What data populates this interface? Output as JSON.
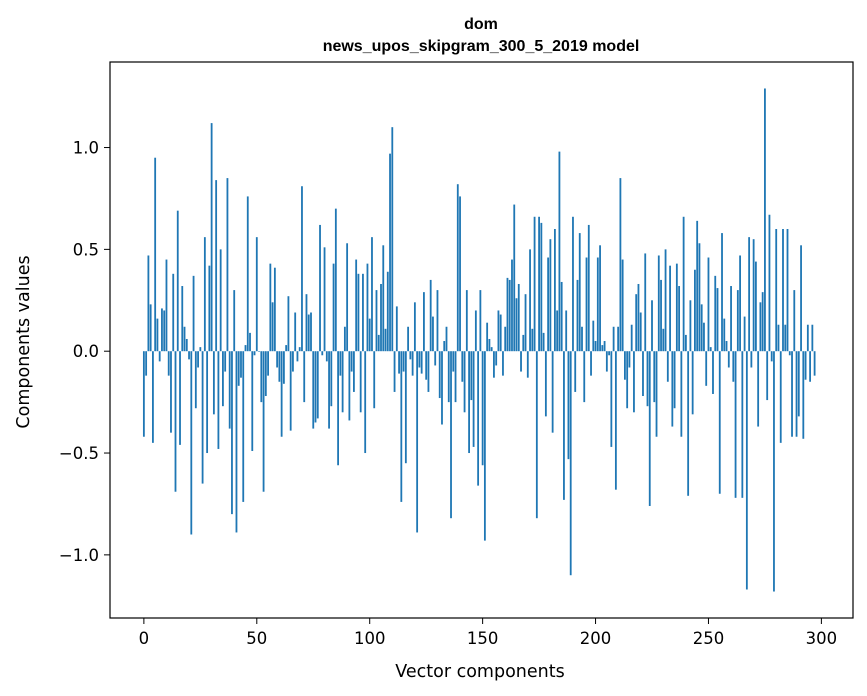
{
  "chart_data": {
    "type": "bar",
    "title": "dom",
    "subtitle": "news_upos_skipgram_300_5_2019 model",
    "xlabel": "Vector components",
    "ylabel": "Components values",
    "xlim": [
      -15,
      314
    ],
    "ylim": [
      -1.31,
      1.42
    ],
    "xticks": [
      0,
      50,
      100,
      150,
      200,
      250,
      300
    ],
    "yticks": [
      -1.0,
      -0.5,
      0.0,
      0.5,
      1.0
    ],
    "ytick_labels": [
      "−1.0",
      "−0.5",
      "0.0",
      "0.5",
      "1.0"
    ],
    "bar_color": "#1f77b4",
    "grid": false,
    "x_start": 0,
    "values": [
      -0.42,
      -0.12,
      0.47,
      0.23,
      -0.45,
      0.95,
      0.16,
      -0.05,
      0.21,
      0.2,
      0.45,
      -0.12,
      -0.4,
      0.38,
      -0.69,
      0.69,
      -0.46,
      0.32,
      0.12,
      0.06,
      -0.04,
      -0.9,
      0.37,
      -0.28,
      -0.08,
      0.02,
      -0.65,
      0.56,
      -0.5,
      0.42,
      1.12,
      -0.31,
      0.84,
      -0.48,
      0.5,
      -0.27,
      -0.1,
      0.85,
      -0.38,
      -0.8,
      0.3,
      -0.89,
      -0.17,
      -0.13,
      -0.74,
      0.03,
      0.76,
      0.09,
      -0.49,
      -0.02,
      0.56,
      0.0,
      -0.25,
      -0.69,
      -0.22,
      -0.12,
      0.43,
      0.24,
      0.41,
      -0.08,
      -0.15,
      -0.42,
      -0.16,
      0.03,
      0.27,
      -0.39,
      -0.1,
      0.19,
      -0.05,
      0.02,
      0.81,
      -0.25,
      0.28,
      0.18,
      0.19,
      -0.38,
      -0.35,
      -0.33,
      0.62,
      -0.02,
      0.51,
      -0.05,
      -0.38,
      -0.27,
      0.43,
      0.7,
      -0.56,
      -0.12,
      -0.3,
      0.12,
      0.53,
      -0.34,
      -0.1,
      -0.2,
      0.45,
      0.38,
      -0.3,
      0.38,
      -0.5,
      0.43,
      0.16,
      0.56,
      -0.28,
      0.3,
      0.08,
      0.33,
      0.52,
      0.11,
      0.39,
      0.97,
      1.1,
      -0.2,
      0.22,
      -0.11,
      -0.74,
      -0.1,
      -0.55,
      0.12,
      -0.04,
      -0.12,
      0.24,
      -0.89,
      -0.08,
      -0.11,
      0.29,
      -0.14,
      -0.2,
      0.35,
      0.17,
      -0.07,
      0.3,
      -0.23,
      -0.36,
      0.05,
      0.12,
      -0.25,
      -0.82,
      -0.1,
      -0.25,
      0.82,
      0.76,
      -0.15,
      -0.3,
      0.3,
      -0.5,
      -0.24,
      -0.47,
      0.2,
      -0.66,
      0.3,
      -0.56,
      -0.93,
      0.14,
      0.06,
      0.02,
      -0.13,
      -0.07,
      0.2,
      0.18,
      -0.12,
      0.12,
      0.36,
      0.35,
      0.45,
      0.72,
      0.26,
      0.33,
      -0.1,
      0.08,
      0.28,
      -0.13,
      0.5,
      0.11,
      0.66,
      -0.82,
      0.66,
      0.63,
      0.09,
      -0.32,
      0.46,
      0.55,
      -0.4,
      0.6,
      0.2,
      0.98,
      0.34,
      -0.73,
      0.2,
      -0.53,
      -1.1,
      0.66,
      -0.2,
      0.35,
      0.58,
      0.12,
      -0.25,
      0.46,
      0.62,
      -0.12,
      0.15,
      0.05,
      0.46,
      0.52,
      0.03,
      0.05,
      -0.1,
      -0.02,
      -0.47,
      0.12,
      -0.68,
      0.12,
      0.85,
      0.45,
      -0.14,
      -0.28,
      -0.08,
      0.13,
      -0.3,
      0.28,
      0.33,
      0.19,
      -0.22,
      0.48,
      -0.27,
      -0.76,
      0.25,
      -0.25,
      -0.42,
      0.47,
      0.35,
      0.11,
      0.5,
      -0.15,
      0.42,
      -0.37,
      -0.28,
      0.43,
      0.32,
      -0.42,
      0.66,
      0.08,
      -0.71,
      0.25,
      -0.31,
      0.4,
      0.64,
      0.53,
      0.23,
      0.14,
      -0.17,
      0.46,
      0.02,
      -0.21,
      0.37,
      0.31,
      -0.7,
      0.58,
      0.16,
      0.05,
      -0.08,
      0.32,
      -0.15,
      -0.72,
      0.3,
      0.47,
      -0.72,
      0.17,
      -1.17,
      0.56,
      -0.08,
      0.55,
      0.44,
      -0.37,
      0.24,
      0.29,
      1.29,
      -0.24,
      0.67,
      -0.05,
      -1.18,
      0.6,
      0.13,
      -0.45,
      0.6,
      0.13,
      0.6,
      -0.02,
      -0.42,
      0.3,
      -0.42,
      -0.32,
      0.52,
      -0.43,
      -0.14,
      0.13,
      -0.15,
      0.13,
      -0.12
    ]
  }
}
